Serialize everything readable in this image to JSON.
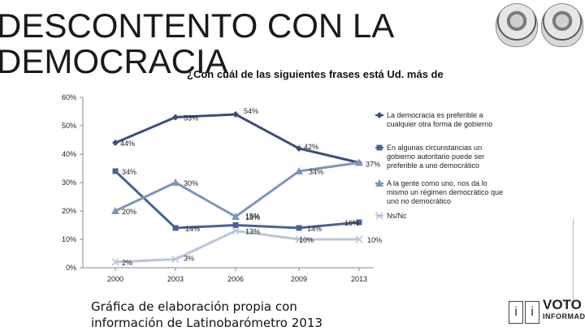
{
  "header": {
    "title_line1": "DESCONTENTO CON LA",
    "title_line2": "DEMOCRACIA",
    "question": "¿Con cuál de las siguientes frases está Ud. más de"
  },
  "caption": {
    "line1": "Gráfica de elaboración propia con",
    "line2": "información de Latinobarómetro 2013"
  },
  "logo": {
    "text": "VOTO",
    "subtext": "INFORMADO",
    "box1": "i",
    "box2": "i"
  },
  "chart_data": {
    "type": "line",
    "x": [
      "2000",
      "2003",
      "2006",
      "2009",
      "2013"
    ],
    "y_ticks": [
      "0%",
      "10%",
      "20%",
      "30%",
      "40%",
      "50%",
      "60%"
    ],
    "ylim": [
      0,
      60
    ],
    "series": [
      {
        "name": "La democracia es preferible a cualquier otra forma de gobierno",
        "values": [
          44,
          53,
          54,
          42,
          37
        ],
        "labels": [
          "44%",
          "53%",
          "54%",
          "42%",
          "37%"
        ],
        "color": "#3c4f78",
        "marker": "diamond"
      },
      {
        "name": "En algunas circunstancias un gobierno autoritario puede ser preferible a uno democrático",
        "values": [
          34,
          14,
          15,
          14,
          16
        ],
        "labels": [
          "34%",
          "14%",
          "15%",
          "14%",
          "16%"
        ],
        "color": "#4a6294",
        "marker": "square"
      },
      {
        "name": "A la gente como uno, nos da lo mismo un régimen democrático que uno no democrático",
        "values": [
          20,
          30,
          18,
          34,
          37
        ],
        "labels": [
          "20%",
          "30%",
          "18%",
          "34%",
          ""
        ],
        "color": "#7f95b8",
        "marker": "triangle"
      },
      {
        "name": "Ns/Nc",
        "values": [
          2,
          3,
          13,
          10,
          10
        ],
        "labels": [
          "2%",
          "3%",
          "13%",
          "10%",
          "10%"
        ],
        "color": "#b9c5d9",
        "marker": "cross"
      }
    ],
    "legend_position": "right",
    "grid": false
  }
}
